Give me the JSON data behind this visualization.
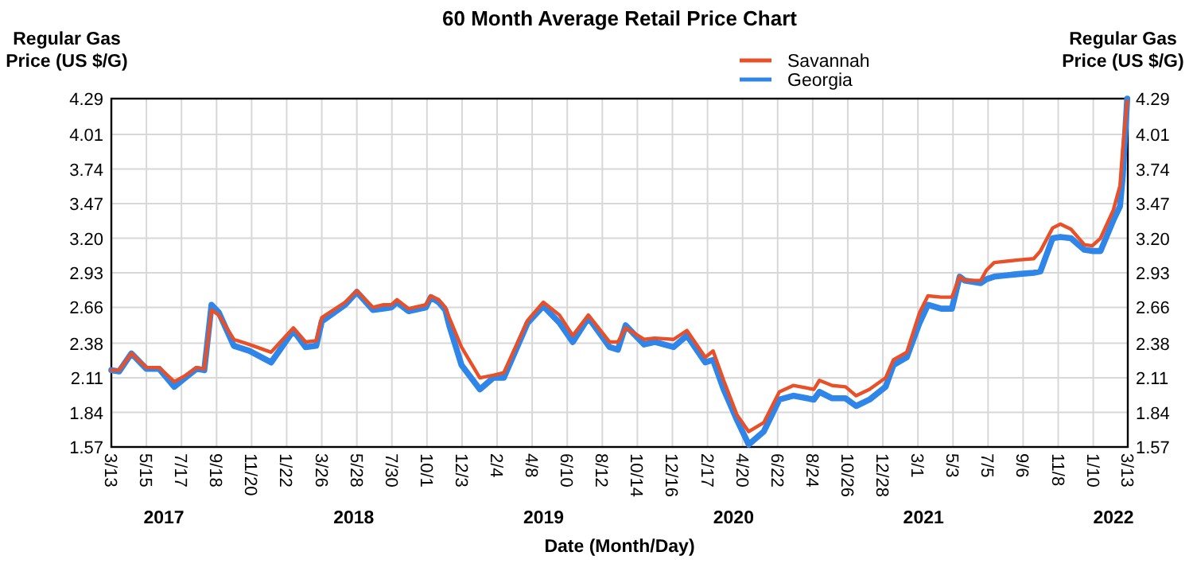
{
  "chart_data": {
    "type": "line",
    "title": "60 Month Average Retail Price Chart",
    "xlabel": "Date (Month/Day)",
    "ylabel": "Regular Gas Price (US $/G)",
    "y2label": "Regular Gas Price (US $/G)",
    "x": [
      "2017-03-13",
      "2017-03-27",
      "2017-04-18",
      "2017-05-15",
      "2017-06-07",
      "2017-07-04",
      "2017-07-21",
      "2017-08-13",
      "2017-08-27",
      "2017-09-09",
      "2017-09-22",
      "2017-10-19",
      "2017-11-16",
      "2017-12-25",
      "2018-02-03",
      "2018-02-25",
      "2018-03-16",
      "2018-03-26",
      "2018-05-07",
      "2018-05-28",
      "2018-06-26",
      "2018-07-15",
      "2018-07-29",
      "2018-08-08",
      "2018-08-29",
      "2018-09-29",
      "2018-10-08",
      "2018-10-22",
      "2018-11-03",
      "2018-11-10",
      "2018-12-02",
      "2019-01-04",
      "2019-01-28",
      "2019-02-16",
      "2019-03-31",
      "2019-04-28",
      "2019-05-27",
      "2019-06-20",
      "2019-07-18",
      "2019-08-25",
      "2019-09-09",
      "2019-09-23",
      "2019-10-26",
      "2019-11-14",
      "2019-12-18",
      "2020-01-11",
      "2020-02-13",
      "2020-02-27",
      "2020-03-17",
      "2020-04-10",
      "2020-05-01",
      "2020-05-28",
      "2020-06-25",
      "2020-07-20",
      "2020-08-26",
      "2020-09-05",
      "2020-09-28",
      "2020-10-22",
      "2020-11-10",
      "2020-12-04",
      "2021-01-02",
      "2021-01-16",
      "2021-02-09",
      "2021-03-04",
      "2021-03-19",
      "2021-04-12",
      "2021-05-01",
      "2021-05-15",
      "2021-05-24",
      "2021-06-22",
      "2021-07-02",
      "2021-07-16",
      "2021-08-28",
      "2021-09-25",
      "2021-10-07",
      "2021-10-29",
      "2021-11-12",
      "2021-12-01",
      "2021-12-25",
      "2022-01-08",
      "2022-01-23",
      "2022-02-15",
      "2022-02-27",
      "2022-03-04",
      "2022-03-12"
    ],
    "series": [
      {
        "name": "Savannah",
        "color": "#e8502a",
        "values": [
          2.17,
          2.17,
          2.3,
          2.19,
          2.19,
          2.08,
          2.12,
          2.19,
          2.18,
          2.64,
          2.6,
          2.41,
          2.37,
          2.31,
          2.5,
          2.39,
          2.4,
          2.58,
          2.7,
          2.79,
          2.66,
          2.68,
          2.68,
          2.72,
          2.65,
          2.68,
          2.75,
          2.72,
          2.66,
          2.58,
          2.35,
          2.11,
          2.13,
          2.15,
          2.56,
          2.7,
          2.6,
          2.44,
          2.6,
          2.39,
          2.39,
          2.5,
          2.41,
          2.42,
          2.41,
          2.48,
          2.27,
          2.32,
          2.09,
          1.82,
          1.69,
          1.76,
          2.0,
          2.05,
          2.02,
          2.09,
          2.05,
          2.04,
          1.97,
          2.02,
          2.11,
          2.25,
          2.31,
          2.62,
          2.75,
          2.74,
          2.74,
          2.9,
          2.87,
          2.87,
          2.95,
          3.01,
          3.03,
          3.04,
          3.1,
          3.28,
          3.31,
          3.27,
          3.15,
          3.14,
          3.2,
          3.42,
          3.61,
          3.9,
          4.27
        ]
      },
      {
        "name": "Georgia",
        "color": "#2f86e8",
        "values": [
          2.17,
          2.16,
          2.3,
          2.18,
          2.18,
          2.04,
          2.1,
          2.18,
          2.17,
          2.68,
          2.62,
          2.36,
          2.32,
          2.23,
          2.48,
          2.35,
          2.36,
          2.55,
          2.68,
          2.78,
          2.64,
          2.65,
          2.66,
          2.7,
          2.63,
          2.66,
          2.74,
          2.7,
          2.64,
          2.52,
          2.21,
          2.02,
          2.11,
          2.11,
          2.54,
          2.67,
          2.54,
          2.39,
          2.58,
          2.35,
          2.33,
          2.52,
          2.37,
          2.39,
          2.35,
          2.44,
          2.23,
          2.25,
          2.02,
          1.78,
          1.59,
          1.69,
          1.94,
          1.97,
          1.94,
          2.0,
          1.95,
          1.95,
          1.89,
          1.94,
          2.04,
          2.21,
          2.27,
          2.54,
          2.68,
          2.65,
          2.65,
          2.9,
          2.87,
          2.85,
          2.88,
          2.9,
          2.92,
          2.93,
          2.94,
          3.2,
          3.21,
          3.2,
          3.11,
          3.1,
          3.1,
          3.34,
          3.45,
          3.69,
          4.29
        ]
      }
    ],
    "xlim": [
      "2017-03-13",
      "2022-03-13"
    ],
    "xticks": [
      {
        "value": "2017-03-13",
        "label": "3/13"
      },
      {
        "value": "2017-05-15",
        "label": "5/15"
      },
      {
        "value": "2017-07-17",
        "label": "7/17"
      },
      {
        "value": "2017-09-18",
        "label": "9/18"
      },
      {
        "value": "2017-11-20",
        "label": "11/20"
      },
      {
        "value": "2018-01-22",
        "label": "1/22"
      },
      {
        "value": "2018-03-26",
        "label": "3/26"
      },
      {
        "value": "2018-05-28",
        "label": "5/28"
      },
      {
        "value": "2018-07-30",
        "label": "7/30"
      },
      {
        "value": "2018-10-01",
        "label": "10/1"
      },
      {
        "value": "2018-12-03",
        "label": "12/3"
      },
      {
        "value": "2019-02-04",
        "label": "2/4"
      },
      {
        "value": "2019-04-08",
        "label": "4/8"
      },
      {
        "value": "2019-06-10",
        "label": "6/10"
      },
      {
        "value": "2019-08-12",
        "label": "8/12"
      },
      {
        "value": "2019-10-14",
        "label": "10/14"
      },
      {
        "value": "2019-12-16",
        "label": "12/16"
      },
      {
        "value": "2020-02-17",
        "label": "2/17"
      },
      {
        "value": "2020-04-20",
        "label": "4/20"
      },
      {
        "value": "2020-06-22",
        "label": "6/22"
      },
      {
        "value": "2020-08-24",
        "label": "8/24"
      },
      {
        "value": "2020-10-26",
        "label": "10/26"
      },
      {
        "value": "2020-12-28",
        "label": "12/28"
      },
      {
        "value": "2021-03-01",
        "label": "3/1"
      },
      {
        "value": "2021-05-03",
        "label": "5/3"
      },
      {
        "value": "2021-07-05",
        "label": "7/5"
      },
      {
        "value": "2021-09-06",
        "label": "9/6"
      },
      {
        "value": "2021-11-08",
        "label": "11/8"
      },
      {
        "value": "2022-01-10",
        "label": "1/10"
      },
      {
        "value": "2022-03-13",
        "label": "3/13"
      }
    ],
    "ylim": [
      1.57,
      4.29
    ],
    "yticks": [
      1.57,
      1.84,
      2.11,
      2.38,
      2.66,
      2.93,
      {
        "value": 3.2,
        "label": "3.20"
      },
      3.47,
      3.74,
      4.01,
      4.29
    ],
    "y2lim": [
      1.57,
      4.29
    ],
    "y2ticks": [
      1.57,
      1.84,
      2.11,
      2.38,
      2.66,
      2.93,
      {
        "value": 3.2,
        "label": "3.20"
      },
      3.47,
      3.74,
      4.01,
      4.29
    ],
    "annotations": [
      "2017",
      "2018",
      "2019",
      "2020",
      "2021",
      "2022"
    ],
    "grid": true,
    "legend": "top right",
    "line_style": "solid"
  }
}
